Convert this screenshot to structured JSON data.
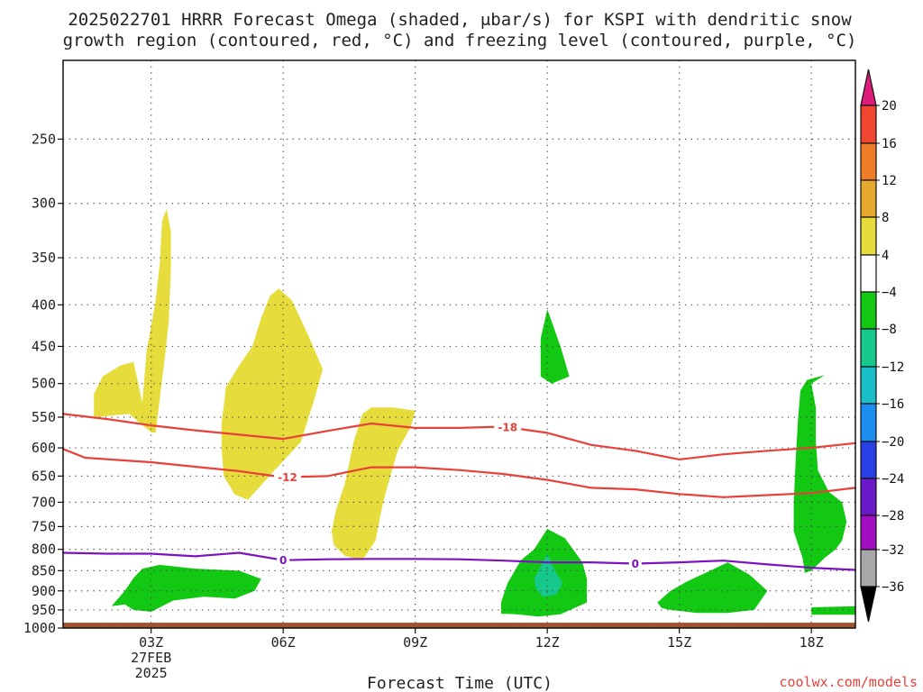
{
  "title": {
    "line1": "2025022701 HRRR Forecast Omega (shaded, μbar/s) for KSPI with dendritic snow",
    "line2": "growth region (contoured, red, °C) and freezing level (contoured, purple, °C)"
  },
  "credit": "coolwx.com/models",
  "chart_data": {
    "type": "cross-section",
    "title": "2025022701 HRRR Forecast Omega (shaded, μbar/s) for KSPI with dendritic snow growth region (contoured, red, °C) and freezing level (contoured, purple, °C)",
    "xlabel": "Forecast Time (UTC)",
    "ylabel": "",
    "x_axis": {
      "range_hours": [
        1,
        19
      ],
      "ticks": [
        {
          "hour": 3,
          "label": "03Z",
          "sub": [
            "27FEB",
            "2025"
          ]
        },
        {
          "hour": 6,
          "label": "06Z",
          "sub": []
        },
        {
          "hour": 9,
          "label": "09Z",
          "sub": []
        },
        {
          "hour": 12,
          "label": "12Z",
          "sub": []
        },
        {
          "hour": 15,
          "label": "15Z",
          "sub": []
        },
        {
          "hour": 18,
          "label": "18Z",
          "sub": []
        }
      ]
    },
    "y_axis": {
      "units": "hPa",
      "scale": "log",
      "range": [
        1000,
        200
      ],
      "ticks": [
        250,
        300,
        350,
        400,
        450,
        500,
        550,
        600,
        650,
        700,
        750,
        800,
        850,
        900,
        950,
        1000
      ],
      "grid": "dotted"
    },
    "surface_pressure_hpa": 985,
    "colorbar": {
      "labels": [
        20,
        16,
        12,
        8,
        4,
        -4,
        -8,
        -12,
        -16,
        -20,
        -24,
        -28,
        -32,
        -36
      ],
      "bins": [
        {
          "range": [
            ">20"
          ],
          "color": "#dd1b7b"
        },
        {
          "range": [
            16,
            20
          ],
          "color": "#f04530"
        },
        {
          "range": [
            12,
            16
          ],
          "color": "#ef7d27"
        },
        {
          "range": [
            8,
            12
          ],
          "color": "#e7a82e"
        },
        {
          "range": [
            4,
            8
          ],
          "color": "#e6dc3b"
        },
        {
          "range": [
            -4,
            4
          ],
          "color": "#ffffff"
        },
        {
          "range": [
            -8,
            -4
          ],
          "color": "#12c812"
        },
        {
          "range": [
            -12,
            -8
          ],
          "color": "#16c88c"
        },
        {
          "range": [
            -16,
            -12
          ],
          "color": "#19bfc9"
        },
        {
          "range": [
            -20,
            -16
          ],
          "color": "#1b8ef0"
        },
        {
          "range": [
            -24,
            -20
          ],
          "color": "#2a3ee6"
        },
        {
          "range": [
            -28,
            -24
          ],
          "color": "#6a19c9"
        },
        {
          "range": [
            -32,
            -28
          ],
          "color": "#a30ec4"
        },
        {
          "range": [
            -36,
            -32
          ],
          "color": "#a8a8a8"
        },
        {
          "range": [
            "<-36"
          ],
          "color": "#000000"
        }
      ]
    },
    "regions": [
      {
        "name": "ascent-column-03z",
        "omega": "4 to 8",
        "color": "#e6dc3b",
        "points": [
          [
            2.8,
            528
          ],
          [
            2.9,
            455
          ],
          [
            3.0,
            425
          ],
          [
            3.1,
            395
          ],
          [
            3.2,
            355
          ],
          [
            3.25,
            315
          ],
          [
            3.35,
            305
          ],
          [
            3.45,
            325
          ],
          [
            3.45,
            360
          ],
          [
            3.4,
            420
          ],
          [
            3.3,
            470
          ],
          [
            3.1,
            575
          ],
          [
            3.0,
            574
          ],
          [
            2.5,
            545
          ],
          [
            1.7,
            550
          ],
          [
            1.7,
            515
          ],
          [
            1.9,
            490
          ],
          [
            2.3,
            475
          ],
          [
            2.6,
            470
          ]
        ]
      },
      {
        "name": "ascent-column-06z",
        "omega": "4 to 8",
        "color": "#e6dc3b",
        "points": [
          [
            4.6,
            560
          ],
          [
            4.7,
            505
          ],
          [
            5.0,
            475
          ],
          [
            5.3,
            450
          ],
          [
            5.5,
            415
          ],
          [
            5.7,
            390
          ],
          [
            5.9,
            382
          ],
          [
            6.2,
            395
          ],
          [
            6.6,
            440
          ],
          [
            6.9,
            480
          ],
          [
            6.7,
            525
          ],
          [
            6.4,
            590
          ],
          [
            5.8,
            640
          ],
          [
            5.2,
            695
          ],
          [
            4.9,
            685
          ],
          [
            4.65,
            650
          ],
          [
            4.6,
            600
          ]
        ]
      },
      {
        "name": "ascent-column-08z",
        "omega": "4 to 8",
        "color": "#e6dc3b",
        "points": [
          [
            7.1,
            760
          ],
          [
            7.2,
            715
          ],
          [
            7.4,
            665
          ],
          [
            7.6,
            590
          ],
          [
            7.8,
            545
          ],
          [
            8.0,
            535
          ],
          [
            8.5,
            535
          ],
          [
            9.0,
            540
          ],
          [
            8.9,
            565
          ],
          [
            8.6,
            605
          ],
          [
            8.3,
            690
          ],
          [
            8.2,
            730
          ],
          [
            8.1,
            780
          ],
          [
            7.8,
            825
          ],
          [
            7.4,
            815
          ],
          [
            7.15,
            790
          ]
        ]
      },
      {
        "name": "descent-low-03z",
        "omega": "-4 to -8",
        "color": "#12c812",
        "points": [
          [
            2.1,
            940
          ],
          [
            2.4,
            900
          ],
          [
            2.6,
            868
          ],
          [
            2.8,
            845
          ],
          [
            3.2,
            836
          ],
          [
            4.0,
            845
          ],
          [
            5.0,
            850
          ],
          [
            5.5,
            870
          ],
          [
            5.35,
            900
          ],
          [
            4.9,
            920
          ],
          [
            4.2,
            915
          ],
          [
            3.5,
            925
          ],
          [
            3.0,
            955
          ],
          [
            2.6,
            950
          ],
          [
            2.4,
            935
          ]
        ]
      },
      {
        "name": "descent-mid-12z",
        "omega": "-4 to -8",
        "color": "#12c812",
        "points": [
          [
            11.85,
            490
          ],
          [
            11.85,
            440
          ],
          [
            12.0,
            405
          ],
          [
            12.3,
            450
          ],
          [
            12.5,
            490
          ],
          [
            12.1,
            500
          ]
        ]
      },
      {
        "name": "descent-low-12z",
        "omega": "-4 to -8",
        "color": "#12c812",
        "points": [
          [
            10.95,
            930
          ],
          [
            11.1,
            880
          ],
          [
            11.4,
            825
          ],
          [
            11.7,
            800
          ],
          [
            12.0,
            755
          ],
          [
            12.4,
            775
          ],
          [
            12.8,
            830
          ],
          [
            12.9,
            870
          ],
          [
            12.9,
            930
          ],
          [
            12.3,
            962
          ],
          [
            11.8,
            968
          ],
          [
            11.3,
            962
          ],
          [
            10.95,
            960
          ]
        ]
      },
      {
        "name": "descent-core-12z",
        "omega": "-8 to -12",
        "color": "#16c88c",
        "points": [
          [
            11.7,
            870
          ],
          [
            11.85,
            840
          ],
          [
            12.0,
            810
          ],
          [
            12.2,
            855
          ],
          [
            12.35,
            880
          ],
          [
            12.2,
            910
          ],
          [
            11.9,
            915
          ],
          [
            11.75,
            895
          ]
        ]
      },
      {
        "name": "descent-low-15z",
        "omega": "-4 to -8",
        "color": "#12c812",
        "points": [
          [
            14.5,
            930
          ],
          [
            14.8,
            900
          ],
          [
            15.2,
            875
          ],
          [
            15.7,
            850
          ],
          [
            16.1,
            830
          ],
          [
            16.6,
            860
          ],
          [
            17.0,
            900
          ],
          [
            16.7,
            950
          ],
          [
            16.1,
            958
          ],
          [
            15.4,
            958
          ],
          [
            14.8,
            950
          ],
          [
            14.6,
            945
          ]
        ]
      },
      {
        "name": "descent-column-18z",
        "omega": "-4 to -8",
        "color": "#12c812",
        "points": [
          [
            17.6,
            700
          ],
          [
            17.65,
            610
          ],
          [
            17.7,
            550
          ],
          [
            17.75,
            510
          ],
          [
            17.9,
            495
          ],
          [
            18.3,
            488
          ],
          [
            18.0,
            500
          ],
          [
            18.1,
            535
          ],
          [
            18.1,
            590
          ],
          [
            18.15,
            640
          ],
          [
            18.4,
            680
          ],
          [
            18.7,
            700
          ],
          [
            18.8,
            740
          ],
          [
            18.7,
            780
          ],
          [
            18.55,
            800
          ],
          [
            18.3,
            820
          ],
          [
            18.0,
            850
          ],
          [
            17.85,
            855
          ],
          [
            17.8,
            820
          ],
          [
            17.6,
            760
          ]
        ]
      },
      {
        "name": "descent-lowest-19z",
        "omega": "-4 to -8",
        "color": "#12c812",
        "points": [
          [
            18.0,
            943
          ],
          [
            19.0,
            940
          ],
          [
            19.0,
            963
          ],
          [
            18.0,
            963
          ]
        ]
      }
    ],
    "contours": [
      {
        "name": "dendritic-minus-18",
        "label": "-18",
        "label_x": 11.1,
        "color": "#e8413a",
        "points": [
          [
            1,
            545
          ],
          [
            2,
            553
          ],
          [
            3,
            563
          ],
          [
            4,
            571
          ],
          [
            5,
            578
          ],
          [
            6,
            585
          ],
          [
            7,
            572
          ],
          [
            8,
            560
          ],
          [
            9,
            567
          ],
          [
            10,
            567
          ],
          [
            11,
            565
          ],
          [
            12,
            575
          ],
          [
            13,
            595
          ],
          [
            14,
            605
          ],
          [
            15,
            620
          ],
          [
            16,
            611
          ],
          [
            17,
            605
          ],
          [
            18,
            600
          ],
          [
            19,
            592
          ]
        ]
      },
      {
        "name": "dendritic-minus-12",
        "label": "-12",
        "label_x": 6.1,
        "color": "#e8413a",
        "points": [
          [
            1,
            602
          ],
          [
            1.5,
            617
          ],
          [
            3,
            625
          ],
          [
            4,
            633
          ],
          [
            5,
            641
          ],
          [
            6,
            652
          ],
          [
            7,
            650
          ],
          [
            8,
            634
          ],
          [
            9,
            634
          ],
          [
            10,
            639
          ],
          [
            11,
            646
          ],
          [
            12,
            657
          ],
          [
            13,
            672
          ],
          [
            14,
            675
          ],
          [
            15,
            684
          ],
          [
            16,
            690
          ],
          [
            17,
            686
          ],
          [
            18,
            682
          ],
          [
            19,
            672
          ]
        ]
      },
      {
        "name": "freezing-level-0",
        "label": "0",
        "label_x": 6.0,
        "label2_x": 14.0,
        "color": "#7d12c0",
        "points": [
          [
            1,
            808
          ],
          [
            2,
            810
          ],
          [
            3,
            810
          ],
          [
            4,
            816
          ],
          [
            5,
            808
          ],
          [
            6,
            825
          ],
          [
            7,
            823
          ],
          [
            8,
            822
          ],
          [
            9,
            822
          ],
          [
            10,
            823
          ],
          [
            11,
            826
          ],
          [
            12,
            830
          ],
          [
            13,
            830
          ],
          [
            14,
            833
          ],
          [
            15,
            830
          ],
          [
            16,
            826
          ],
          [
            17,
            835
          ],
          [
            18,
            843
          ],
          [
            19,
            848
          ]
        ]
      }
    ]
  }
}
